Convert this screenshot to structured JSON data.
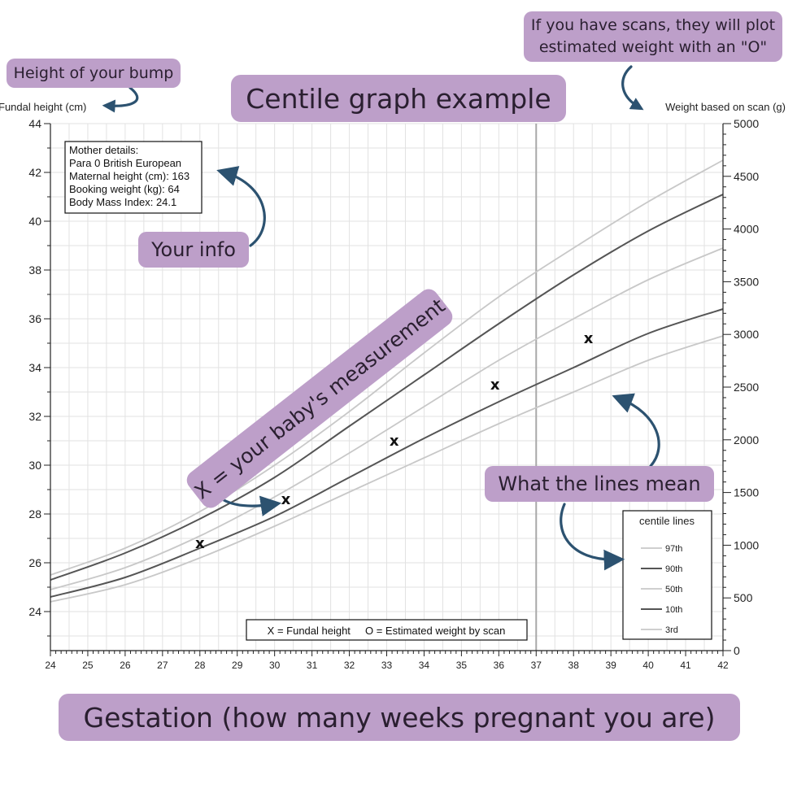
{
  "title": "Centile graph example",
  "annotations": {
    "bump": "Height of your bump",
    "scans_line1": "If you have scans, they will plot",
    "scans_line2": "estimated weight with an \"O\"",
    "info": "Your info",
    "measurement": "X = your baby's measurement",
    "lines": "What the lines mean",
    "gestation": "Gestation (how many weeks pregnant you are)"
  },
  "mother_details": [
    "Mother details:",
    "Para 0  British European",
    "Maternal height (cm): 163",
    "Booking weight (kg): 64",
    "Body Mass Index: 24.1"
  ],
  "key_text": "X = Fundal height     O = Estimated weight by scan",
  "colors": {
    "pill": "#bd9fc9",
    "arrow": "#2c5270",
    "dark_line": "#555555",
    "light_line": "#c8c8c8",
    "grid": "#e2e2e2"
  },
  "chart_data": {
    "type": "line",
    "xlabel": "",
    "ylabel": "Fundal height (cm)",
    "y2label": "Weight based on scan (g)",
    "xlim": [
      24,
      42
    ],
    "ylim": [
      22.4,
      44
    ],
    "y2lim": [
      0,
      5000
    ],
    "x_ticks": [
      24,
      25,
      26,
      27,
      28,
      29,
      30,
      31,
      32,
      33,
      34,
      35,
      36,
      37,
      38,
      39,
      40,
      41,
      42
    ],
    "y_ticks": [
      24,
      26,
      28,
      30,
      32,
      34,
      36,
      38,
      40,
      42,
      44
    ],
    "y2_ticks": [
      0,
      500,
      1000,
      1500,
      2000,
      2500,
      3000,
      3500,
      4000,
      4500,
      5000
    ],
    "grid": true,
    "x_highlight": 37,
    "series": [
      {
        "name": "97th",
        "style": "light",
        "x": [
          24,
          26,
          28,
          30,
          32,
          34,
          36,
          38,
          40,
          42
        ],
        "y": [
          25.5,
          26.6,
          28.1,
          30.0,
          32.2,
          34.6,
          36.9,
          38.9,
          40.8,
          42.5
        ]
      },
      {
        "name": "90th",
        "style": "dark",
        "x": [
          24,
          26,
          28,
          30,
          32,
          34,
          36,
          38,
          40,
          42
        ],
        "y": [
          25.3,
          26.4,
          27.8,
          29.5,
          31.6,
          33.7,
          35.8,
          37.8,
          39.6,
          41.1
        ]
      },
      {
        "name": "50th",
        "style": "light",
        "x": [
          24,
          26,
          28,
          30,
          32,
          34,
          36,
          38,
          40,
          42
        ],
        "y": [
          24.9,
          25.8,
          27.1,
          28.7,
          30.5,
          32.4,
          34.3,
          36.0,
          37.6,
          38.9
        ]
      },
      {
        "name": "10th",
        "style": "dark",
        "x": [
          24,
          26,
          28,
          30,
          32,
          34,
          36,
          38,
          40,
          42
        ],
        "y": [
          24.6,
          25.4,
          26.6,
          27.9,
          29.5,
          31.1,
          32.6,
          34.0,
          35.4,
          36.4
        ]
      },
      {
        "name": "3rd",
        "style": "light",
        "x": [
          24,
          26,
          28,
          30,
          32,
          34,
          36,
          38,
          40,
          42
        ],
        "y": [
          24.4,
          25.1,
          26.2,
          27.5,
          28.9,
          30.3,
          31.7,
          33.0,
          34.3,
          35.3
        ]
      }
    ],
    "measurements": {
      "marker": "X",
      "points": [
        {
          "x": 28,
          "y": 26.8
        },
        {
          "x": 30.3,
          "y": 28.6
        },
        {
          "x": 33.2,
          "y": 31.0
        },
        {
          "x": 35.9,
          "y": 33.3
        },
        {
          "x": 38.4,
          "y": 35.2
        }
      ]
    },
    "legend": {
      "title": "centile lines",
      "position": "bottom-right",
      "entries": [
        "97th",
        "90th",
        "50th",
        "10th",
        "3rd"
      ]
    }
  }
}
